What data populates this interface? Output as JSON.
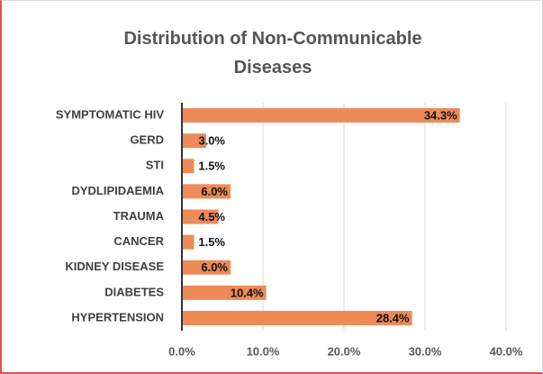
{
  "chart_data": {
    "type": "hbar",
    "title": "Distribution of Non-Communicable Diseases",
    "categories": [
      "SYMPTOMATIC HIV",
      "GERD",
      "STI",
      "DYDLIPIDAEMIA",
      "TRAUMA",
      "CANCER",
      "KIDNEY DISEASE",
      "DIABETES",
      "HYPERTENSION"
    ],
    "values": [
      34.3,
      3.0,
      1.5,
      6.0,
      4.5,
      1.5,
      6.0,
      10.4,
      28.4
    ],
    "value_labels": [
      "34.3%",
      "3.0%",
      "1.5%",
      "6.0%",
      "4.5%",
      "1.5%",
      "6.0%",
      "10.4%",
      "28.4%"
    ],
    "color": "#ed8a58",
    "xlim": [
      0,
      40
    ],
    "xticks": [
      {
        "value": 0,
        "label": "0.0%"
      },
      {
        "value": 10,
        "label": "10.0%"
      },
      {
        "value": 20,
        "label": "20.0%"
      },
      {
        "value": 30,
        "label": "30.0%"
      },
      {
        "value": 40,
        "label": "40.0%"
      }
    ],
    "grid": true
  }
}
